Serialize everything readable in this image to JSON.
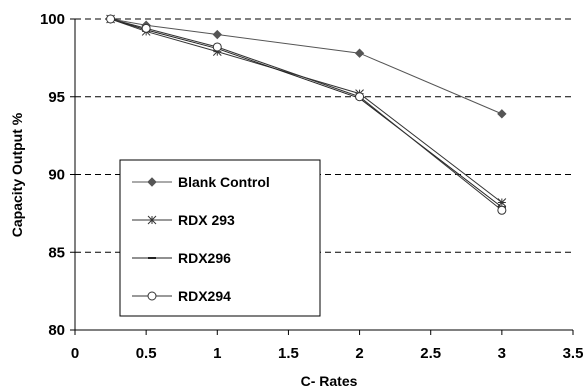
{
  "chart_data": {
    "type": "line",
    "xlabel": "C- Rates",
    "ylabel": "Capacity Output %",
    "xlim": [
      0,
      3.5
    ],
    "ylim": [
      80,
      100
    ],
    "xticks": [
      0,
      0.5,
      1,
      1.5,
      2,
      2.5,
      3,
      3.5
    ],
    "xtick_labels": [
      "0",
      "0.5",
      "1",
      "1.5",
      "2",
      "2.5",
      "3",
      "3.5"
    ],
    "yticks": [
      80,
      85,
      90,
      95,
      100
    ],
    "ytick_labels": [
      "80",
      "85",
      "90",
      "95",
      "100"
    ],
    "grid": "horizontal dashed",
    "legend_position": "left-center",
    "series": [
      {
        "name": "Blank Control",
        "marker": "diamond",
        "color": "#555555",
        "x": [
          0.25,
          0.5,
          1,
          2,
          3
        ],
        "y": [
          100,
          99.6,
          99.0,
          97.8,
          93.9
        ]
      },
      {
        "name": "RDX 293",
        "marker": "asterisk",
        "color": "#333333",
        "x": [
          0.25,
          0.5,
          1,
          2,
          3
        ],
        "y": [
          100,
          99.2,
          97.9,
          95.2,
          88.2
        ]
      },
      {
        "name": "RDX296",
        "marker": "dash",
        "color": "#222222",
        "x": [
          0.25,
          0.5,
          1,
          2,
          3
        ],
        "y": [
          100,
          99.3,
          98.1,
          94.9,
          87.9
        ]
      },
      {
        "name": "RDX294",
        "marker": "circle",
        "color": "#333333",
        "x": [
          0.25,
          0.5,
          1,
          2,
          3
        ],
        "y": [
          100,
          99.4,
          98.2,
          95.0,
          87.7
        ]
      }
    ]
  }
}
